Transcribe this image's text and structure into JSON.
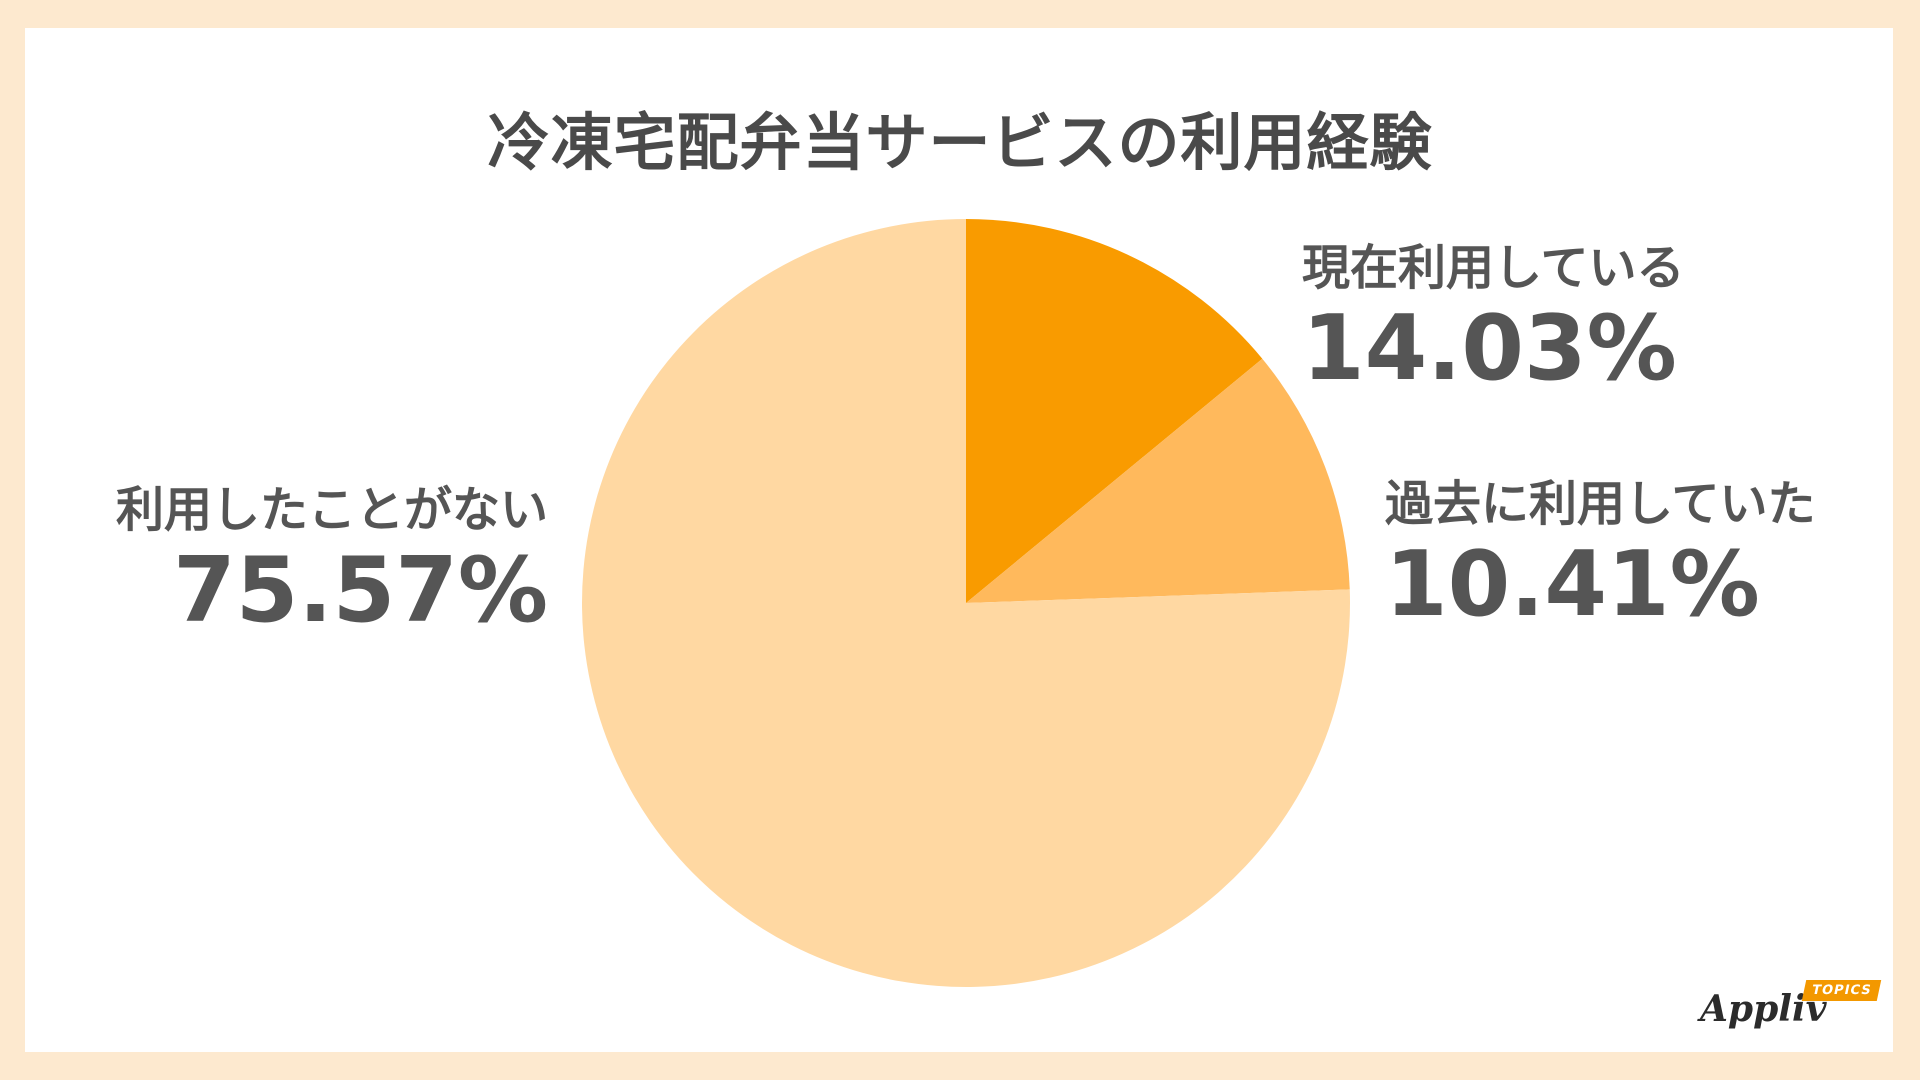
{
  "chart_data": {
    "type": "pie",
    "title": "冷凍宅配弁当サービスの利用経験",
    "unit": "%",
    "slices": [
      {
        "label": "現在利用している",
        "value": 14.03,
        "display": "14.03%",
        "color": "#f99b00"
      },
      {
        "label": "過去に利用していた",
        "value": 10.41,
        "display": "10.41%",
        "color": "#ffb95c"
      },
      {
        "label": "利用したことがない",
        "value": 75.57,
        "display": "75.57%",
        "color": "#ffd8a2"
      }
    ],
    "start_angle": "12 o'clock",
    "direction": "clockwise"
  },
  "logo": {
    "name": "Appliv",
    "tag": "TOPICS",
    "tag_color": "#f39800"
  },
  "colors": {
    "background": "#fde9cf",
    "panel": "#ffffff",
    "text": "#555555"
  }
}
